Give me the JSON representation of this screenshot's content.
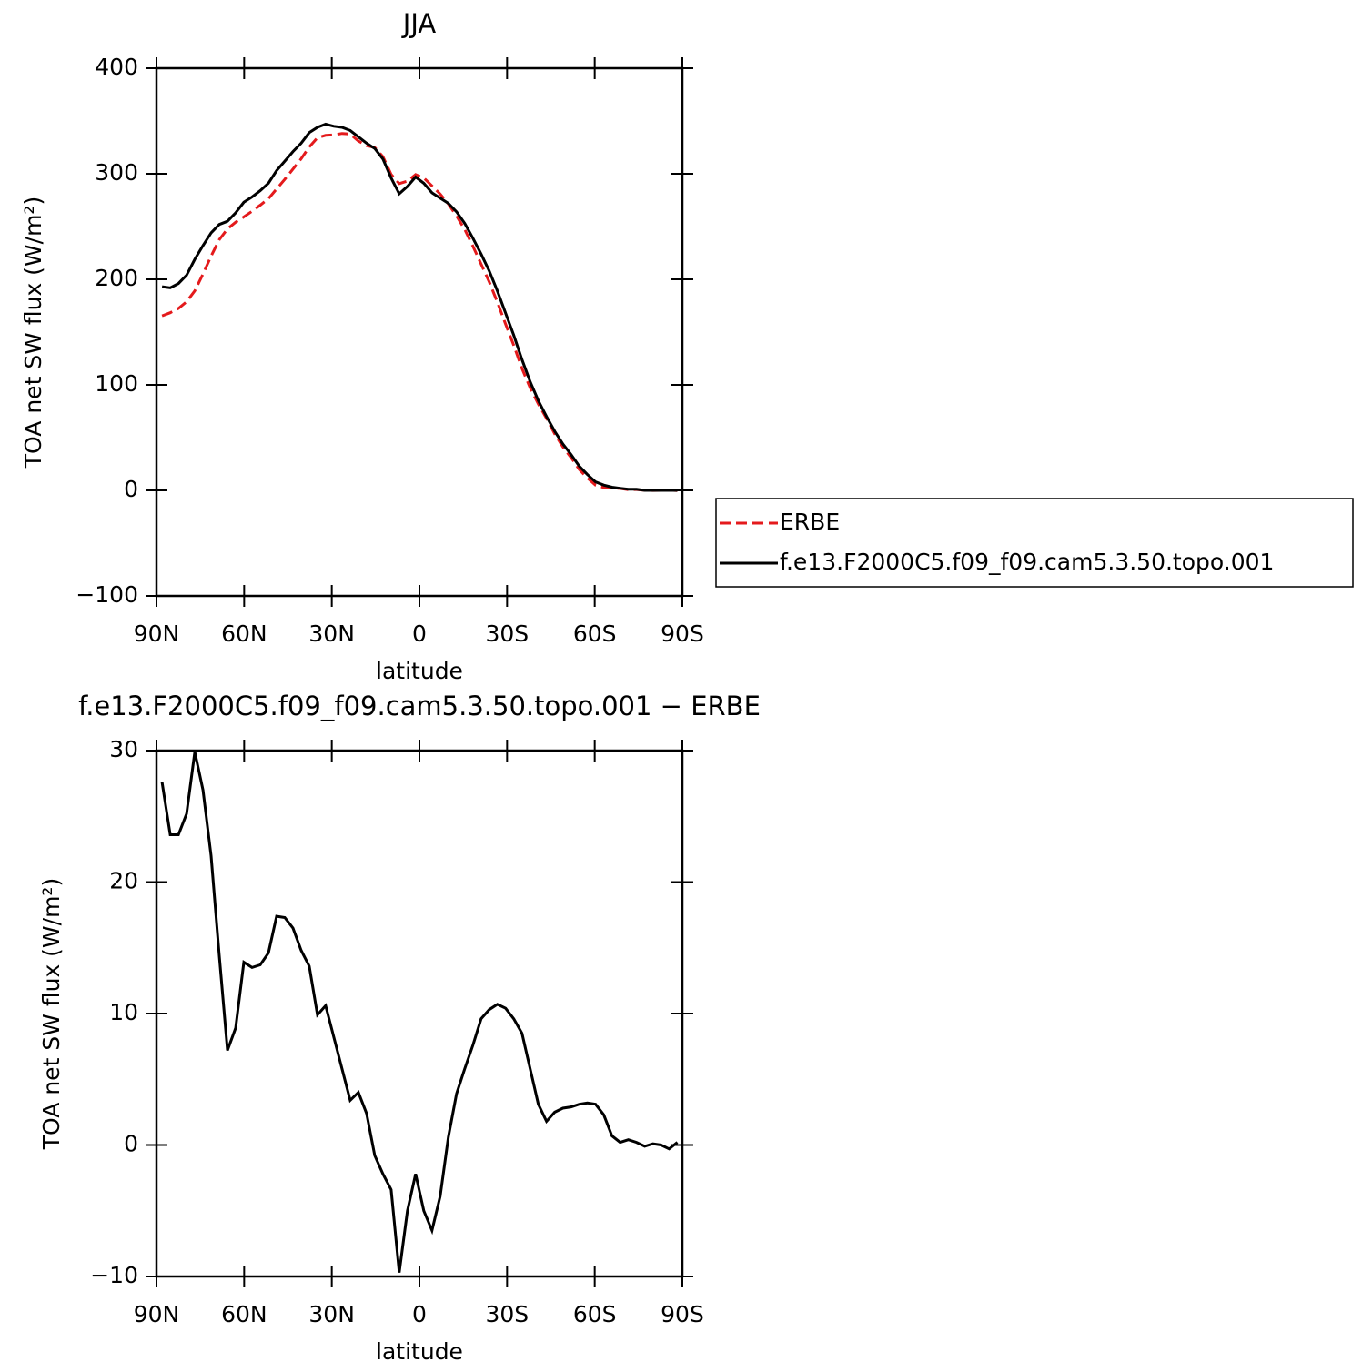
{
  "chart_data": [
    {
      "type": "line",
      "title": "JJA",
      "x_label": "latitude",
      "y_label": "TOA net SW flux (W/m²)",
      "x": [
        88.1,
        85.3,
        82.5,
        79.7,
        76.9,
        74.1,
        71.3,
        68.5,
        65.7,
        62.9,
        60.1,
        57.3,
        54.5,
        51.7,
        48.9,
        46.1,
        43.3,
        40.5,
        37.7,
        34.9,
        32.1,
        29.3,
        26.5,
        23.7,
        20.9,
        18.1,
        15.3,
        12.5,
        9.7,
        6.9,
        4.1,
        1.3,
        -1.5,
        -4.3,
        -7.1,
        -9.9,
        -12.7,
        -15.5,
        -18.3,
        -21.1,
        -23.9,
        -26.7,
        -29.5,
        -32.3,
        -35.1,
        -37.9,
        -40.7,
        -43.5,
        -46.3,
        -49.1,
        -51.9,
        -54.7,
        -57.5,
        -60.3,
        -63.1,
        -65.9,
        -68.7,
        -71.5,
        -74.3,
        -77.1,
        -79.9,
        -82.7,
        -85.5,
        -88.3
      ],
      "series": [
        {
          "name": "ERBE",
          "color": "#e41a1c",
          "line_style": "dashed",
          "values": [
            165.4,
            168.4,
            172.4,
            178.8,
            189.1,
            205,
            222,
            237.6,
            247.8,
            254.1,
            259.1,
            264.5,
            270.3,
            276.4,
            285.6,
            294.7,
            304.5,
            314.2,
            325.4,
            334.1,
            336.4,
            336.8,
            338.2,
            337.6,
            331,
            326.6,
            324.8,
            316.2,
            299.4,
            290.7,
            293,
            299.2,
            296,
            288.5,
            280.9,
            271.4,
            260.1,
            247.2,
            231.4,
            214.4,
            197.7,
            178.3,
            157.6,
            137.4,
            115.5,
            97.2,
            81.9,
            68.2,
            53.5,
            41.2,
            31.1,
            19.9,
            11.8,
            4.9,
            2.7,
            2.3,
            1.8,
            0.6,
            0.8,
            0.1,
            -0.1,
            0,
            0.3,
            -0.2
          ]
        },
        {
          "name": "f.e13.F2000C5.f09_f09.cam5.3.50.topo.001",
          "color": "#000000",
          "line_style": "solid",
          "values": [
            193,
            192,
            196,
            204,
            219,
            232,
            244,
            252,
            255,
            263,
            273,
            278,
            284,
            291,
            303,
            312,
            321,
            329,
            339,
            344,
            347,
            345,
            344,
            341,
            335,
            329,
            324,
            314,
            296,
            281,
            288,
            297,
            291,
            282,
            277,
            272,
            264,
            253,
            239,
            224,
            208,
            189,
            168,
            147,
            124,
            103,
            85,
            70,
            56,
            44,
            34,
            23,
            15,
            8,
            5,
            3,
            2,
            1,
            1,
            0,
            0,
            0,
            0,
            0
          ]
        }
      ],
      "xlim": [
        90,
        -90
      ],
      "xticks": [
        {
          "value": 90,
          "label": "90N"
        },
        {
          "value": 60,
          "label": "60N"
        },
        {
          "value": 30,
          "label": "30N"
        },
        0,
        {
          "value": -30,
          "label": "30S"
        },
        {
          "value": -60,
          "label": "60S"
        },
        {
          "value": -90,
          "label": "90S"
        }
      ],
      "ylim": [
        -100,
        400
      ],
      "yticks": [
        {
          "value": -100,
          "label": "−100"
        },
        0,
        100,
        200,
        300,
        400
      ],
      "legend_position": "outside right"
    },
    {
      "type": "line",
      "title": "f.e13.F2000C5.f09_f09.cam5.3.50.topo.001 − ERBE",
      "x_label": "latitude",
      "y_label": "TOA net SW flux (W/m²)",
      "x": [
        88.1,
        85.3,
        82.5,
        79.7,
        76.9,
        74.1,
        71.3,
        68.5,
        65.7,
        62.9,
        60.1,
        57.3,
        54.5,
        51.7,
        48.9,
        46.1,
        43.3,
        40.5,
        37.7,
        34.9,
        32.1,
        29.3,
        26.5,
        23.7,
        20.9,
        18.1,
        15.3,
        12.5,
        9.7,
        6.9,
        4.1,
        1.3,
        -1.5,
        -4.3,
        -7.1,
        -9.9,
        -12.7,
        -15.5,
        -18.3,
        -21.1,
        -23.9,
        -26.7,
        -29.5,
        -32.3,
        -35.1,
        -37.9,
        -40.7,
        -43.5,
        -46.3,
        -49.1,
        -51.9,
        -54.7,
        -57.5,
        -60.3,
        -63.1,
        -65.9,
        -68.7,
        -71.5,
        -74.3,
        -77.1,
        -79.9,
        -82.7,
        -85.5,
        -88.3
      ],
      "values": [
        27.6,
        23.6,
        23.6,
        25.2,
        29.9,
        27.0,
        22.0,
        14.4,
        7.2,
        8.9,
        13.9,
        13.5,
        13.7,
        14.6,
        17.4,
        17.3,
        16.5,
        14.8,
        13.6,
        9.9,
        10.6,
        8.2,
        5.8,
        3.4,
        4.0,
        2.4,
        -0.8,
        -2.2,
        -3.4,
        -9.7,
        -5.0,
        -2.2,
        -5.0,
        -6.5,
        -3.9,
        0.6,
        3.9,
        5.8,
        7.6,
        9.6,
        10.3,
        10.7,
        10.4,
        9.6,
        8.5,
        5.8,
        3.1,
        1.8,
        2.5,
        2.8,
        2.9,
        3.1,
        3.2,
        3.1,
        2.3,
        0.7,
        0.2,
        0.4,
        0.2,
        -0.1,
        0.1,
        0.0,
        -0.3,
        0.2
      ],
      "color": "#000000",
      "xlim": [
        90,
        -90
      ],
      "xticks": [
        {
          "value": 90,
          "label": "90N"
        },
        {
          "value": 60,
          "label": "60N"
        },
        {
          "value": 30,
          "label": "30N"
        },
        0,
        {
          "value": -30,
          "label": "30S"
        },
        {
          "value": -60,
          "label": "60S"
        },
        {
          "value": -90,
          "label": "90S"
        }
      ],
      "ylim": [
        -10,
        30
      ],
      "yticks": [
        {
          "value": -10,
          "label": "−10"
        },
        0,
        10,
        20,
        30
      ]
    }
  ]
}
